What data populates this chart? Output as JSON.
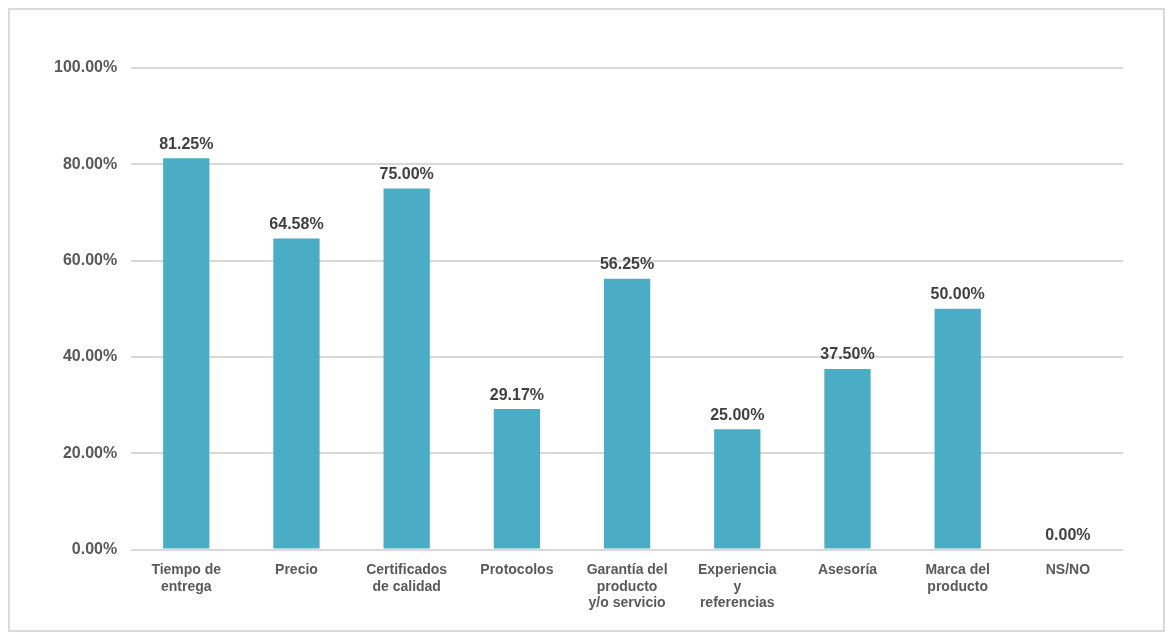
{
  "chart_data": {
    "type": "bar",
    "categories": [
      "Tiempo de entrega",
      "Precio",
      "Certificados de calidad",
      "Protocolos",
      "Garantía del producto y/o servicio",
      "Experiencia y referencias",
      "Asesoría",
      "Marca del producto",
      "NS/NO"
    ],
    "values": [
      81.25,
      64.58,
      75.0,
      29.17,
      56.25,
      25.0,
      37.5,
      50.0,
      0.0
    ],
    "value_labels": [
      "81.25%",
      "64.58%",
      "75.00%",
      "29.17%",
      "56.25%",
      "25.00%",
      "37.50%",
      "50.00%",
      "0.00%"
    ],
    "color": "#4bacc6",
    "ylim": [
      0,
      100
    ],
    "yticks": [
      {
        "value": 0,
        "label": "0.00%"
      },
      {
        "value": 20,
        "label": "20.00%"
      },
      {
        "value": 40,
        "label": "40.00%"
      },
      {
        "value": 60,
        "label": "60.00%"
      },
      {
        "value": 80,
        "label": "80.00%"
      },
      {
        "value": 100,
        "label": "100.00%"
      }
    ],
    "grid": "y"
  }
}
